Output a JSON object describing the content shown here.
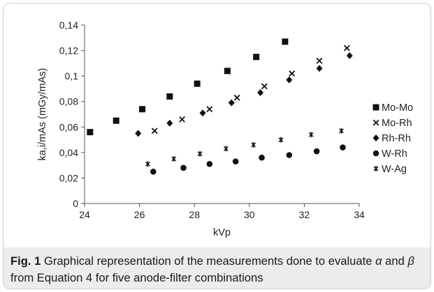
{
  "chart_data": {
    "type": "scatter",
    "title": "",
    "xlabel": "kVp",
    "ylabel": "ka,i/mAs (mGy/mAs)",
    "xlim": [
      24,
      34
    ],
    "ylim": [
      0,
      0.14
    ],
    "xticks": [
      "24",
      "26",
      "28",
      "30",
      "32",
      "34"
    ],
    "yticks": [
      "0",
      "0,02",
      "0,04",
      "0,06",
      "0,08",
      "0,1",
      "0,12",
      "0,14"
    ],
    "grid": false,
    "legend_position": "right",
    "series": [
      {
        "name": "Mo-Mo",
        "marker": "square",
        "x": [
          24.2,
          25.15,
          26.1,
          27.1,
          28.1,
          29.2,
          30.25,
          31.3
        ],
        "y": [
          0.056,
          0.065,
          0.074,
          0.084,
          0.094,
          0.104,
          0.115,
          0.127
        ]
      },
      {
        "name": "Mo-Rh",
        "marker": "x",
        "x": [
          26.55,
          27.55,
          28.55,
          29.55,
          30.55,
          31.55,
          32.55,
          33.55
        ],
        "y": [
          0.057,
          0.066,
          0.074,
          0.083,
          0.092,
          0.102,
          0.112,
          0.122
        ]
      },
      {
        "name": "Rh-Rh",
        "marker": "diamond",
        "x": [
          25.95,
          27.1,
          28.3,
          29.35,
          30.4,
          31.45,
          32.55,
          33.65
        ],
        "y": [
          0.055,
          0.063,
          0.071,
          0.079,
          0.087,
          0.097,
          0.106,
          0.116
        ]
      },
      {
        "name": "W-Rh",
        "marker": "circle",
        "x": [
          26.5,
          27.6,
          28.55,
          29.5,
          30.45,
          31.45,
          32.45,
          33.4
        ],
        "y": [
          0.025,
          0.028,
          0.031,
          0.033,
          0.036,
          0.038,
          0.041,
          0.044
        ]
      },
      {
        "name": "W-Ag",
        "marker": "asterisk",
        "x": [
          26.3,
          27.25,
          28.2,
          29.15,
          30.15,
          31.15,
          32.25,
          33.35
        ],
        "y": [
          0.031,
          0.035,
          0.039,
          0.043,
          0.046,
          0.05,
          0.054,
          0.057
        ]
      }
    ]
  },
  "caption": {
    "lead": "Fig. 1",
    "text_1": " Graphical representation of the measurements done to evaluate ",
    "alpha": "α",
    "text_2": " and ",
    "beta": "β",
    "text_3": " from Equation 4 for five anode-filter combinations"
  },
  "colors": {
    "marker": "#111111",
    "axis": "#555555",
    "caption_bg": "#ececec"
  }
}
